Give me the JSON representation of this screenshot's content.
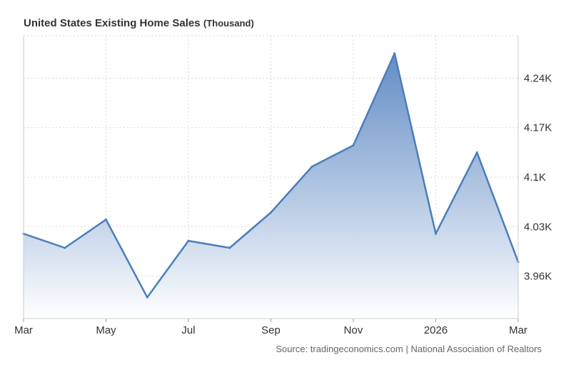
{
  "header": {
    "title": "United States Existing Home Sales",
    "unit": "(Thousand)"
  },
  "source": "Source: tradingeconomics.com | National Association of Realtors",
  "colors": {
    "line": "#4a7ebb",
    "fill_top": "#5b87c2",
    "grid": "#d8d8d8",
    "text": "#333333"
  },
  "chart_data": {
    "type": "area",
    "title": "United States Existing Home Sales",
    "unit": "(Thousand)",
    "x": [
      "2025-03",
      "2025-04",
      "2025-05",
      "2025-06",
      "2025-07",
      "2025-08",
      "2025-09",
      "2025-10",
      "2025-11",
      "2025-12",
      "2026-01",
      "2026-02",
      "2026-03"
    ],
    "values": [
      4.02,
      4.0,
      4.04,
      3.93,
      4.01,
      4.0,
      4.05,
      4.115,
      4.145,
      4.275,
      4.02,
      4.135,
      3.98
    ],
    "x_tick_labels": [
      "Mar",
      "May",
      "Jul",
      "Sep",
      "Nov",
      "2026",
      "Mar"
    ],
    "x_tick_positions": [
      "2025-03",
      "2025-05",
      "2025-07",
      "2025-09",
      "2025-11",
      "2026-01",
      "2026-03"
    ],
    "y_ticks": [
      3.96,
      4.03,
      4.1,
      4.17,
      4.24
    ],
    "y_tick_labels": [
      "3.96K",
      "4.03K",
      "4.1K",
      "4.17K",
      "4.24K"
    ],
    "ylim": [
      3.9,
      4.3
    ],
    "y_axis_side": "right",
    "grid": true
  }
}
